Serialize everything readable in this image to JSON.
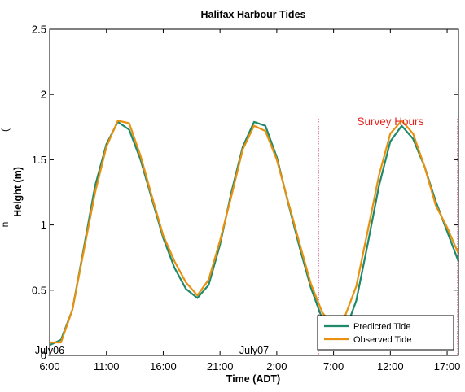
{
  "chart_data": {
    "type": "line",
    "title": "Halifax Harbour Tides",
    "xlabel": "Time (ADT)",
    "ylabel": "Height (m)",
    "ylim": [
      0,
      2.5
    ],
    "xlim": [
      "July06 6:00",
      "July07 18:00"
    ],
    "grid": false,
    "legend_position": "bottom-right",
    "y_ticks": [
      "0",
      "0.5",
      "1",
      "1.5",
      "2",
      "2.5"
    ],
    "x_ticks": [
      {
        "label": "6:00",
        "datetime": "July06 6:00"
      },
      {
        "label": "11:00",
        "datetime": "July06 11:00"
      },
      {
        "label": "16:00",
        "datetime": "July06 16:00"
      },
      {
        "label": "21:00",
        "datetime": "July06 21:00"
      },
      {
        "label": "2:00",
        "datetime": "July07 2:00"
      },
      {
        "label": "7:00",
        "datetime": "July07 7:00"
      },
      {
        "label": "12:00",
        "datetime": "July07 12:00"
      },
      {
        "label": "17:00",
        "datetime": "July07 17:00"
      }
    ],
    "date_labels": [
      {
        "text": "July06",
        "datetime": "July06 6:00"
      },
      {
        "text": "July07",
        "datetime": "July07 0:00"
      }
    ],
    "annotations": [
      {
        "text": "Survey Hours",
        "datetime": "July07 12:00",
        "y": 1.75
      }
    ],
    "survey_window": {
      "start": "July07 5:40",
      "end": "July07 18:00"
    },
    "series": [
      {
        "name": "Predicted Tide",
        "color": "#1f8a6a",
        "points": [
          [
            "July06 6:00",
            0.08
          ],
          [
            "July06 7:00",
            0.12
          ],
          [
            "July06 8:00",
            0.35
          ],
          [
            "July06 9:00",
            0.82
          ],
          [
            "July06 10:00",
            1.3
          ],
          [
            "July06 11:00",
            1.62
          ],
          [
            "July06 12:00",
            1.79
          ],
          [
            "July06 13:00",
            1.73
          ],
          [
            "July06 14:00",
            1.5
          ],
          [
            "July06 15:00",
            1.2
          ],
          [
            "July06 16:00",
            0.9
          ],
          [
            "July06 17:00",
            0.67
          ],
          [
            "July06 18:00",
            0.51
          ],
          [
            "July06 19:00",
            0.44
          ],
          [
            "July06 20:00",
            0.54
          ],
          [
            "July06 21:00",
            0.85
          ],
          [
            "July06 22:00",
            1.25
          ],
          [
            "July06 23:00",
            1.6
          ],
          [
            "July07 0:00",
            1.79
          ],
          [
            "July07 1:00",
            1.76
          ],
          [
            "July07 2:00",
            1.52
          ],
          [
            "July07 3:00",
            1.17
          ],
          [
            "July07 4:00",
            0.83
          ],
          [
            "July07 5:00",
            0.52
          ],
          [
            "July07 6:00",
            0.28
          ],
          [
            "July07 7:00",
            0.14
          ],
          [
            "July07 8:00",
            0.18
          ],
          [
            "July07 9:00",
            0.42
          ],
          [
            "July07 10:00",
            0.85
          ],
          [
            "July07 11:00",
            1.3
          ],
          [
            "July07 12:00",
            1.64
          ],
          [
            "July07 13:00",
            1.76
          ],
          [
            "July07 14:00",
            1.66
          ],
          [
            "July07 15:00",
            1.45
          ],
          [
            "July07 16:00",
            1.18
          ],
          [
            "July07 17:00",
            0.95
          ],
          [
            "July07 18:00",
            0.72
          ]
        ]
      },
      {
        "name": "Observed Tide",
        "color": "#e8900f",
        "points": [
          [
            "July06 6:00",
            0.1
          ],
          [
            "July06 7:00",
            0.1
          ],
          [
            "July06 8:00",
            0.35
          ],
          [
            "July06 9:00",
            0.8
          ],
          [
            "July06 10:00",
            1.25
          ],
          [
            "July06 11:00",
            1.6
          ],
          [
            "July06 12:00",
            1.8
          ],
          [
            "July06 13:00",
            1.78
          ],
          [
            "July06 14:00",
            1.53
          ],
          [
            "July06 15:00",
            1.22
          ],
          [
            "July06 16:00",
            0.92
          ],
          [
            "July06 17:00",
            0.72
          ],
          [
            "July06 18:00",
            0.56
          ],
          [
            "July06 19:00",
            0.46
          ],
          [
            "July06 20:00",
            0.58
          ],
          [
            "July06 21:00",
            0.88
          ],
          [
            "July06 22:00",
            1.22
          ],
          [
            "July06 23:00",
            1.58
          ],
          [
            "July07 0:00",
            1.76
          ],
          [
            "July07 1:00",
            1.72
          ],
          [
            "July07 2:00",
            1.5
          ],
          [
            "July07 3:00",
            1.18
          ],
          [
            "July07 4:00",
            0.86
          ],
          [
            "July07 5:00",
            0.55
          ],
          [
            "July07 6:00",
            0.33
          ],
          [
            "July07 7:00",
            0.22
          ],
          [
            "July07 8:00",
            0.3
          ],
          [
            "July07 9:00",
            0.53
          ],
          [
            "July07 10:00",
            0.95
          ],
          [
            "July07 11:00",
            1.38
          ],
          [
            "July07 12:00",
            1.7
          ],
          [
            "July07 13:00",
            1.8
          ],
          [
            "July07 14:00",
            1.7
          ],
          [
            "July07 15:00",
            1.45
          ],
          [
            "July07 16:00",
            1.15
          ],
          [
            "July07 17:00",
            0.98
          ],
          [
            "July07 18:00",
            0.78
          ]
        ]
      }
    ]
  },
  "side_label_fragments": [
    "(",
    "n"
  ]
}
